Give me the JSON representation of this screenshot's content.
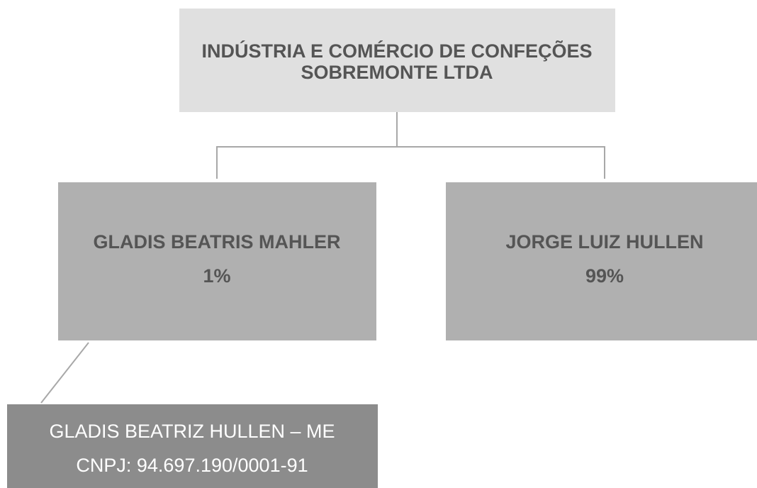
{
  "nodes": [
    {
      "lines": [
        "INDÚSTRIA E COMÉRCIO DE CONFEÇÕES",
        "SOBREMONTE LTDA"
      ]
    },
    {
      "lines": [
        "GLADIS BEATRIS MAHLER",
        "1%"
      ]
    },
    {
      "lines": [
        "JORGE LUIZ HULLEN",
        "99%"
      ]
    },
    {
      "lines": [
        "GLADIS BEATRIZ HULLEN – ME",
        "CNPJ: 94.697.190/0001-91"
      ]
    }
  ]
}
